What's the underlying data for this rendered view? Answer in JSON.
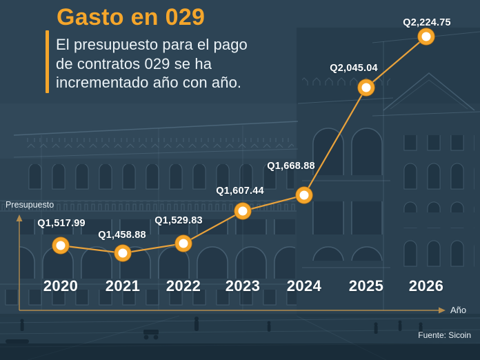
{
  "header": {
    "title": "Gasto en 029",
    "subtitle": "El presupuesto para el pago\nde contratos 029 se ha\nincrementado año con año."
  },
  "axes": {
    "y_label": "Presupuesto",
    "x_label": "Año"
  },
  "footer": {
    "source": "Fuente: Sicoin"
  },
  "chart_data": {
    "type": "line",
    "title": "Gasto en 029",
    "subtitle": "El presupuesto para el pago de contratos 029 se ha incrementado año con año.",
    "categories": [
      "2020",
      "2021",
      "2022",
      "2023",
      "2024",
      "2025",
      "2026"
    ],
    "series": [
      {
        "name": "Presupuesto (contratos 029)",
        "values": [
          1517.99,
          1458.88,
          1529.83,
          1607.44,
          1668.88,
          2045.04,
          2224.75
        ]
      }
    ],
    "point_labels": [
      "Q1,517.99",
      "Q1,458.88",
      "Q1,529.83",
      "Q1,607.44",
      "Q1,668.88",
      "Q2,045.04",
      "Q2,224.75"
    ],
    "xlabel": "Año",
    "ylabel": "Presupuesto",
    "source": "Fuente: Sicoin",
    "grid": false,
    "legend_position": "none",
    "line_color": "#E9A23B",
    "marker_color": "#F5A62B",
    "marker_center_color": "#FFFFFF",
    "axis_color": "#C2954E",
    "label_color": "#FFFFFF"
  },
  "colors": {
    "accent_orange": "#F5A62B",
    "background": "#2D4455",
    "text_white": "#ECF3F7"
  }
}
